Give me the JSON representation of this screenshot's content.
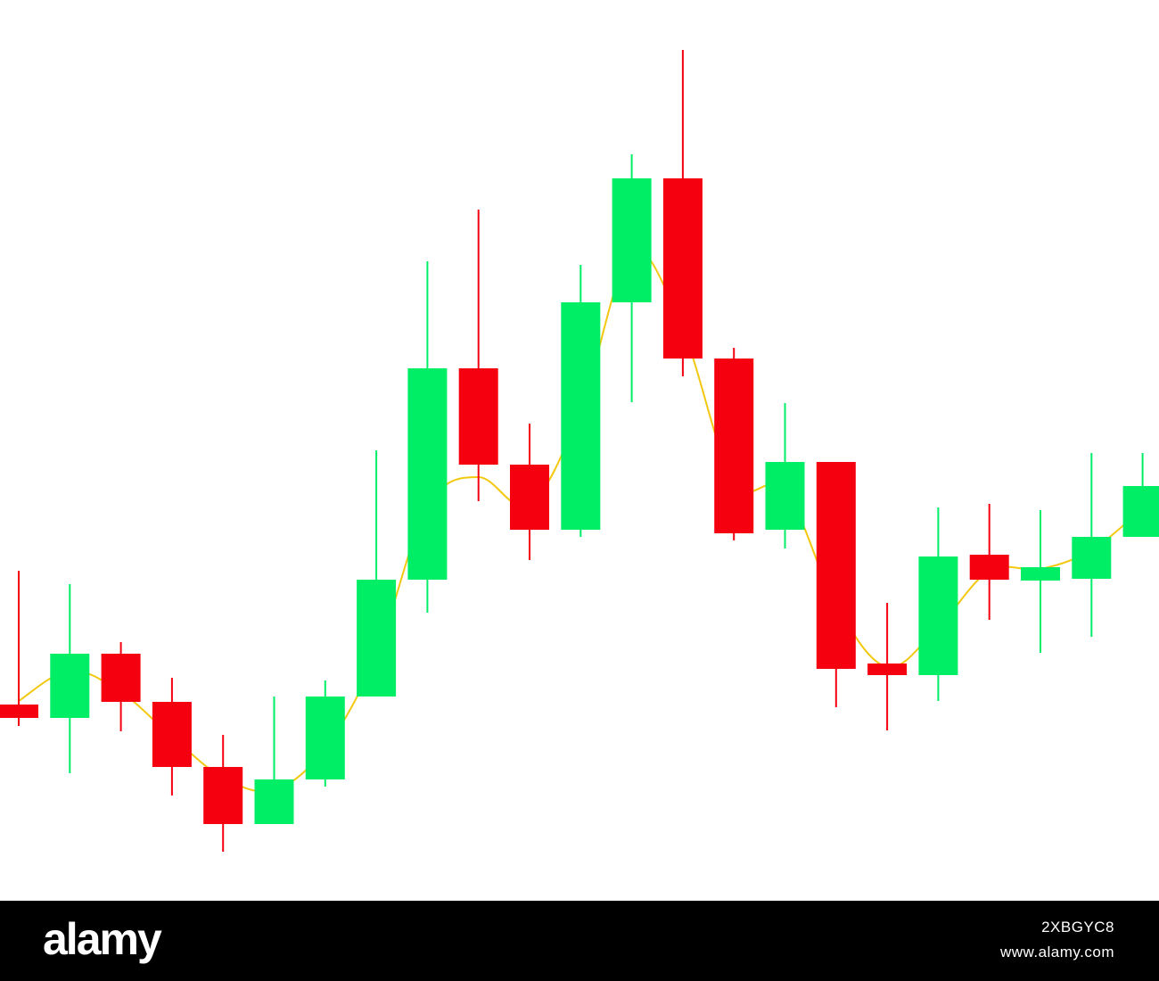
{
  "chart_data": {
    "type": "candlestick",
    "title": "",
    "xlabel": "",
    "ylabel": "",
    "axes_visible": false,
    "grid": false,
    "ylim": [
      0,
      1010
    ],
    "colors": {
      "up": "#00ee66",
      "down": "#f5000f",
      "moving_average": "#f2c811"
    },
    "candles": [
      {
        "open": 220,
        "close": 205,
        "high": 370,
        "low": 196
      },
      {
        "open": 205,
        "close": 277,
        "high": 355,
        "low": 143
      },
      {
        "open": 277,
        "close": 223,
        "high": 290,
        "low": 190
      },
      {
        "open": 223,
        "close": 150,
        "high": 250,
        "low": 118
      },
      {
        "open": 150,
        "close": 86,
        "high": 186,
        "low": 55
      },
      {
        "open": 86,
        "close": 136,
        "high": 229,
        "low": 86
      },
      {
        "open": 136,
        "close": 229,
        "high": 247,
        "low": 128
      },
      {
        "open": 229,
        "close": 360,
        "high": 505,
        "low": 229
      },
      {
        "open": 360,
        "close": 597,
        "high": 717,
        "low": 323
      },
      {
        "open": 597,
        "close": 489,
        "high": 775,
        "low": 448
      },
      {
        "open": 489,
        "close": 416,
        "high": 535,
        "low": 382
      },
      {
        "open": 416,
        "close": 671,
        "high": 713,
        "low": 408
      },
      {
        "open": 671,
        "close": 810,
        "high": 837,
        "low": 559
      },
      {
        "open": 810,
        "close": 608,
        "high": 954,
        "low": 588
      },
      {
        "open": 608,
        "close": 412,
        "high": 620,
        "low": 404
      },
      {
        "open": 416,
        "close": 492,
        "high": 558,
        "low": 395
      },
      {
        "open": 492,
        "close": 260,
        "high": 492,
        "low": 217
      },
      {
        "open": 266,
        "close": 253,
        "high": 334,
        "low": 191
      },
      {
        "open": 253,
        "close": 386,
        "high": 441,
        "low": 224
      },
      {
        "open": 388,
        "close": 360,
        "high": 445,
        "low": 315
      },
      {
        "open": 359,
        "close": 374,
        "high": 438,
        "low": 278
      },
      {
        "open": 361,
        "close": 408,
        "high": 502,
        "low": 296
      },
      {
        "open": 408,
        "close": 465,
        "high": 502,
        "low": 408
      }
    ],
    "moving_average": [
      224,
      258,
      234,
      184,
      138,
      124,
      171,
      275,
      442,
      475,
      444,
      550,
      727,
      640,
      469,
      461,
      332,
      262,
      307,
      370,
      372,
      393,
      440
    ]
  },
  "footer": {
    "brand": "alamy",
    "image_id": "2XBGYC8",
    "url": "www.alamy.com"
  }
}
